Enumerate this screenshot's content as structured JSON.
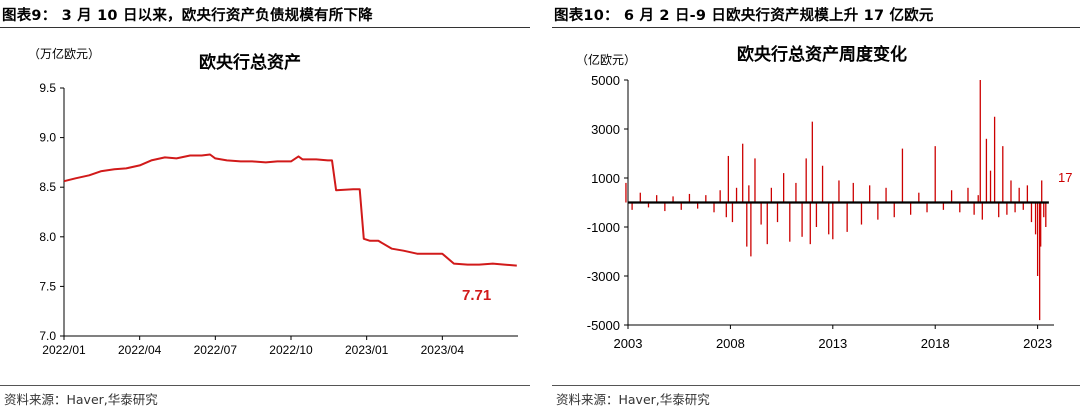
{
  "left": {
    "figure_title": "图表9： 3 月 10 日以来，欧央行资产负债规模有所下降",
    "source": "资料来源：Haver,华泰研究",
    "chart_data": {
      "type": "line",
      "title": "欧央行总资产",
      "unit": "（万亿欧元）",
      "xlabel": "",
      "ylabel": "",
      "ylim": [
        7.0,
        9.5
      ],
      "yticks": [
        "9.5",
        "9.0",
        "8.5",
        "8.0",
        "7.5",
        "7.0"
      ],
      "xticks": [
        "2022/01",
        "2022/04",
        "2022/07",
        "2022/10",
        "2023/01",
        "2023/04"
      ],
      "color": "#d11a1a",
      "last_label": "7.71",
      "grid": false,
      "series": [
        {
          "x": [
            "2022-01-01",
            "2022-01-15",
            "2022-02-01",
            "2022-02-15",
            "2022-03-01",
            "2022-03-15",
            "2022-04-01",
            "2022-04-15",
            "2022-05-01",
            "2022-05-15",
            "2022-06-01",
            "2022-06-15",
            "2022-06-25",
            "2022-07-01",
            "2022-07-15",
            "2022-08-01",
            "2022-08-15",
            "2022-09-01",
            "2022-09-15",
            "2022-10-01",
            "2022-10-10",
            "2022-10-15",
            "2022-11-01",
            "2022-11-15",
            "2022-11-20",
            "2022-11-25",
            "2022-12-15",
            "2022-12-23",
            "2022-12-28",
            "2023-01-05",
            "2023-01-15",
            "2023-02-01",
            "2023-02-15",
            "2023-03-01",
            "2023-03-15",
            "2023-04-01",
            "2023-04-15",
            "2023-05-01",
            "2023-05-15",
            "2023-06-01",
            "2023-06-15",
            "2023-06-30"
          ],
          "values": [
            8.56,
            8.59,
            8.62,
            8.66,
            8.68,
            8.69,
            8.72,
            8.77,
            8.8,
            8.79,
            8.82,
            8.82,
            8.83,
            8.79,
            8.77,
            8.76,
            8.76,
            8.75,
            8.76,
            8.76,
            8.81,
            8.78,
            8.78,
            8.77,
            8.77,
            8.47,
            8.48,
            8.48,
            7.98,
            7.96,
            7.96,
            7.88,
            7.86,
            7.83,
            7.83,
            7.83,
            7.73,
            7.72,
            7.72,
            7.73,
            7.72,
            7.71
          ]
        }
      ]
    }
  },
  "right": {
    "figure_title": "图表10： 6 月 2 日-9 日欧央行资产规模上升 17 亿欧元",
    "source": "资料来源：Haver,华泰研究",
    "chart_data": {
      "type": "bar",
      "title": "欧央行总资产周度变化",
      "unit": "（亿欧元）",
      "xlabel": "",
      "ylabel": "",
      "ylim": [
        -5000,
        5000
      ],
      "yticks": [
        "5000",
        "3000",
        "1000",
        "-1000",
        "-3000",
        "-5000"
      ],
      "xticks": [
        "2003",
        "2008",
        "2013",
        "2018",
        "2023"
      ],
      "color": "#cc0000",
      "last_label": "17",
      "grid": false,
      "series": [
        {
          "x": [
            2002.9,
            2003.2,
            2003.6,
            2004.0,
            2004.4,
            2004.8,
            2005.2,
            2005.6,
            2006.0,
            2006.4,
            2006.8,
            2007.2,
            2007.5,
            2007.8,
            2007.9,
            2008.1,
            2008.3,
            2008.6,
            2008.8,
            2008.9,
            2009.0,
            2009.2,
            2009.5,
            2009.8,
            2010.0,
            2010.3,
            2010.6,
            2010.9,
            2011.2,
            2011.5,
            2011.7,
            2011.9,
            2012.0,
            2012.2,
            2012.5,
            2012.8,
            2013.0,
            2013.3,
            2013.7,
            2014.0,
            2014.4,
            2014.8,
            2015.2,
            2015.6,
            2016.0,
            2016.4,
            2016.8,
            2017.2,
            2017.6,
            2018.0,
            2018.4,
            2018.8,
            2019.2,
            2019.6,
            2019.9,
            2020.1,
            2020.2,
            2020.3,
            2020.5,
            2020.7,
            2020.9,
            2021.1,
            2021.3,
            2021.5,
            2021.7,
            2021.9,
            2022.1,
            2022.3,
            2022.5,
            2022.7,
            2022.9,
            2023.0,
            2023.1,
            2023.15,
            2023.2,
            2023.3,
            2023.4,
            2023.5
          ],
          "values": [
            800,
            -300,
            400,
            -200,
            300,
            -350,
            250,
            -300,
            350,
            -250,
            300,
            -400,
            500,
            -600,
            1900,
            -800,
            600,
            2400,
            -1800,
            700,
            -2200,
            1800,
            -900,
            -1700,
            600,
            -800,
            1200,
            -1600,
            800,
            -1400,
            1800,
            -1700,
            3300,
            -1000,
            1500,
            -1300,
            -1500,
            900,
            -1200,
            800,
            -900,
            700,
            -700,
            600,
            -600,
            2200,
            -500,
            400,
            -400,
            2300,
            -300,
            500,
            -400,
            600,
            -500,
            300,
            5000,
            -700,
            2600,
            1300,
            3500,
            -600,
            2300,
            -500,
            900,
            -400,
            600,
            -300,
            700,
            -800,
            -1300,
            -3000,
            -4800,
            -1800,
            900,
            -600,
            -1000,
            17
          ]
        }
      ]
    }
  }
}
